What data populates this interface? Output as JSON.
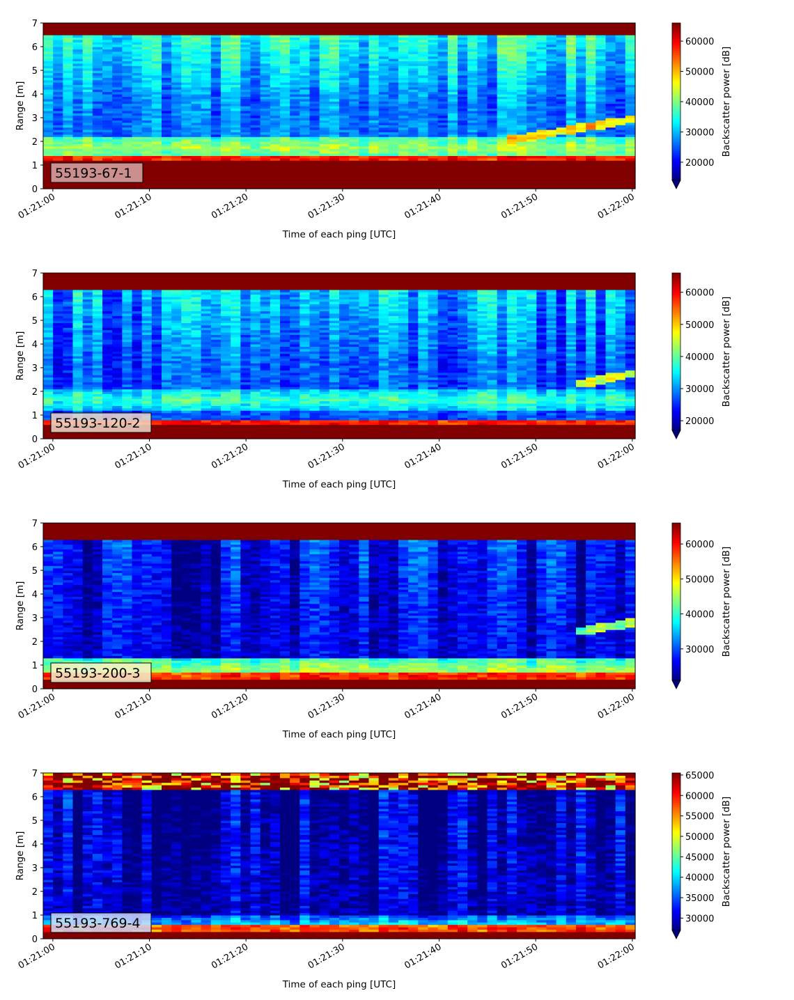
{
  "chart_data": [
    {
      "type": "heatmap",
      "panel_label": "55193-67-1",
      "label_box_color": "#d9a8a8",
      "xlabel": "Time of each ping [UTC]",
      "ylabel": "Range [m]",
      "xticks": [
        "01:21:00",
        "01:21:10",
        "01:21:20",
        "01:21:30",
        "01:21:40",
        "01:21:50",
        "01:22:00"
      ],
      "xlim_seconds": [
        -1,
        60.3
      ],
      "ylim": [
        0,
        7
      ],
      "yticks": [
        0,
        1,
        2,
        3,
        4,
        5,
        6,
        7
      ],
      "colorbar": {
        "label": "Backscatter power [dB]",
        "vmin": 14000,
        "vmax": 66000,
        "ticks": [
          20000,
          30000,
          40000,
          50000,
          60000
        ],
        "extend": "min"
      },
      "features": {
        "seabed_strong_below_m": 1.2,
        "band": {
          "center_m": 1.75,
          "level": 42000
        },
        "surface_strong_above_m": 6.45,
        "rising_target": {
          "t_start": 47,
          "t_end": 60,
          "r_start": 2.05,
          "r_end": 2.95,
          "level": 48000
        },
        "mid_water_level": 27000,
        "upper_water_level": 35000
      }
    },
    {
      "type": "heatmap",
      "panel_label": "55193-120-2",
      "label_box_color": "#eed8c8",
      "xlabel": "Time of each ping [UTC]",
      "ylabel": "Range [m]",
      "xticks": [
        "01:21:00",
        "01:21:10",
        "01:21:20",
        "01:21:30",
        "01:21:40",
        "01:21:50",
        "01:22:00"
      ],
      "xlim_seconds": [
        -1,
        60.3
      ],
      "ylim": [
        0,
        7
      ],
      "yticks": [
        0,
        1,
        2,
        3,
        4,
        5,
        6,
        7
      ],
      "colorbar": {
        "label": "Backscatter power [dB]",
        "vmin": 17000,
        "vmax": 66000,
        "ticks": [
          20000,
          30000,
          40000,
          50000,
          60000
        ],
        "extend": "min"
      },
      "features": {
        "seabed_strong_below_m": 0.6,
        "band": {
          "center_m": 1.65,
          "level": 38000
        },
        "surface_strong_above_m": 6.3,
        "rising_target": {
          "t_start": 54,
          "t_end": 60,
          "r_start": 2.3,
          "r_end": 2.75,
          "level": 46000
        },
        "mid_water_level": 27000,
        "upper_water_level": 32000
      }
    },
    {
      "type": "heatmap",
      "panel_label": "55193-200-3",
      "label_box_color": "#f3f0cc",
      "xlabel": "Time of each ping [UTC]",
      "ylabel": "Range [m]",
      "xticks": [
        "01:21:00",
        "01:21:10",
        "01:21:20",
        "01:21:30",
        "01:21:40",
        "01:21:50",
        "01:22:00"
      ],
      "xlim_seconds": [
        -1,
        60.3
      ],
      "ylim": [
        0,
        7
      ],
      "yticks": [
        0,
        1,
        2,
        3,
        4,
        5,
        6,
        7
      ],
      "colorbar": {
        "label": "Backscatter power [dB]",
        "vmin": 21000,
        "vmax": 66000,
        "ticks": [
          30000,
          40000,
          50000,
          60000
        ],
        "extend": "min"
      },
      "features": {
        "seabed_strong_below_m": 0.45,
        "band": {
          "center_m": 0.8,
          "level": 45000
        },
        "surface_strong_above_m": 6.35,
        "rising_target": {
          "t_start": 54,
          "t_end": 60,
          "r_start": 2.4,
          "r_end": 2.8,
          "level": 44000
        },
        "mid_water_level": 25000,
        "upper_water_level": 26000
      }
    },
    {
      "type": "heatmap",
      "panel_label": "55193-769-4",
      "label_box_color": "#ccd6f5",
      "xlabel": "Time of each ping [UTC]",
      "ylabel": "Range [m]",
      "xticks": [
        "01:21:00",
        "01:21:10",
        "01:21:20",
        "01:21:30",
        "01:21:40",
        "01:21:50",
        "01:22:00"
      ],
      "xlim_seconds": [
        -1,
        60.3
      ],
      "ylim": [
        0,
        7
      ],
      "yticks": [
        0,
        1,
        2,
        3,
        4,
        5,
        6,
        7
      ],
      "colorbar": {
        "label": "Backscatter power [dB]",
        "vmin": 27000,
        "vmax": 65500,
        "ticks": [
          30000,
          35000,
          40000,
          45000,
          50000,
          55000,
          60000,
          65000
        ],
        "extend": "min"
      },
      "features": {
        "seabed_strong_below_m": 0.35,
        "band": {
          "center_m": 0.55,
          "level": 40000
        },
        "surface_strong_above_m": 6.3,
        "rising_target": null,
        "mid_water_level": 29000,
        "upper_water_level": 27500
      }
    }
  ]
}
